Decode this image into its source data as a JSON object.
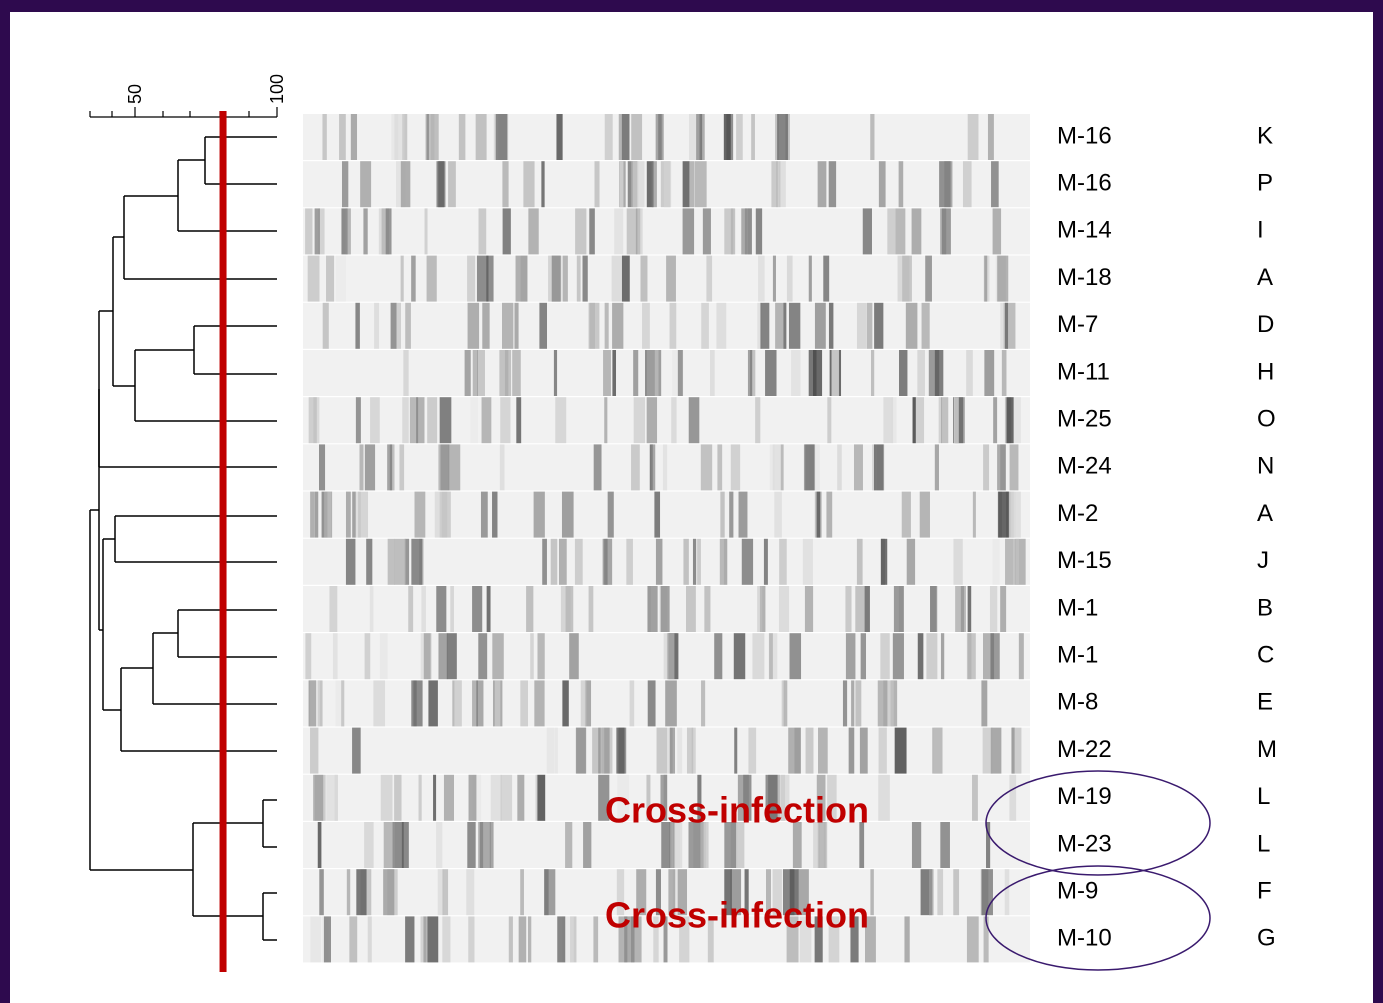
{
  "scale": {
    "ticks": [
      50,
      100
    ],
    "cutoff": 81
  },
  "rows": [
    {
      "isolate": "M-16",
      "type": "K"
    },
    {
      "isolate": "M-16",
      "type": "P"
    },
    {
      "isolate": "M-14",
      "type": "I"
    },
    {
      "isolate": "M-18",
      "type": "A"
    },
    {
      "isolate": "M-7",
      "type": "D"
    },
    {
      "isolate": "M-11",
      "type": "H"
    },
    {
      "isolate": "M-25",
      "type": "O"
    },
    {
      "isolate": "M-24",
      "type": "N"
    },
    {
      "isolate": "M-2",
      "type": "A"
    },
    {
      "isolate": "M-15",
      "type": "J"
    },
    {
      "isolate": "M-1",
      "type": "B"
    },
    {
      "isolate": "M-1",
      "type": "C"
    },
    {
      "isolate": "M-8",
      "type": "E"
    },
    {
      "isolate": "M-22",
      "type": "M"
    },
    {
      "isolate": "M-19",
      "type": "L"
    },
    {
      "isolate": "M-23",
      "type": "L"
    },
    {
      "isolate": "M-9",
      "type": "F"
    },
    {
      "isolate": "M-10",
      "type": "G"
    }
  ],
  "annotations": [
    "Cross-infection",
    "Cross-infection"
  ]
}
